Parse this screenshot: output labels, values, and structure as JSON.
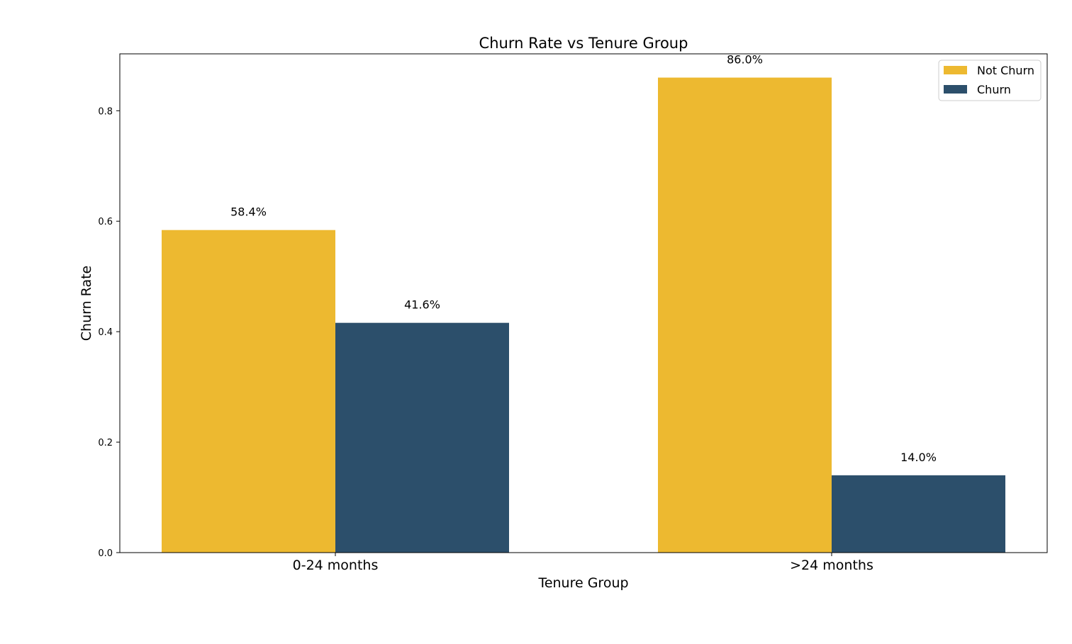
{
  "chart_data": {
    "type": "bar",
    "title": "Churn Rate vs Tenure Group",
    "xlabel": "Tenure Group",
    "ylabel": "Churn Rate",
    "categories": [
      "0-24 months",
      ">24 months"
    ],
    "series": [
      {
        "name": "Not Churn",
        "values": [
          0.584,
          0.86
        ],
        "labels": [
          "58.4%",
          "86.0%"
        ],
        "color": "#EDB930"
      },
      {
        "name": "Churn",
        "values": [
          0.416,
          0.14
        ],
        "labels": [
          "41.6%",
          "14.0%"
        ],
        "color": "#2C4F6B"
      }
    ],
    "yticks": [
      0.0,
      0.2,
      0.4,
      0.6,
      0.8
    ],
    "ytick_labels": [
      "0.0",
      "0.2",
      "0.4",
      "0.6",
      "0.8"
    ],
    "ylim": [
      0,
      0.903
    ],
    "grid": false,
    "legend_position": "top-right"
  }
}
